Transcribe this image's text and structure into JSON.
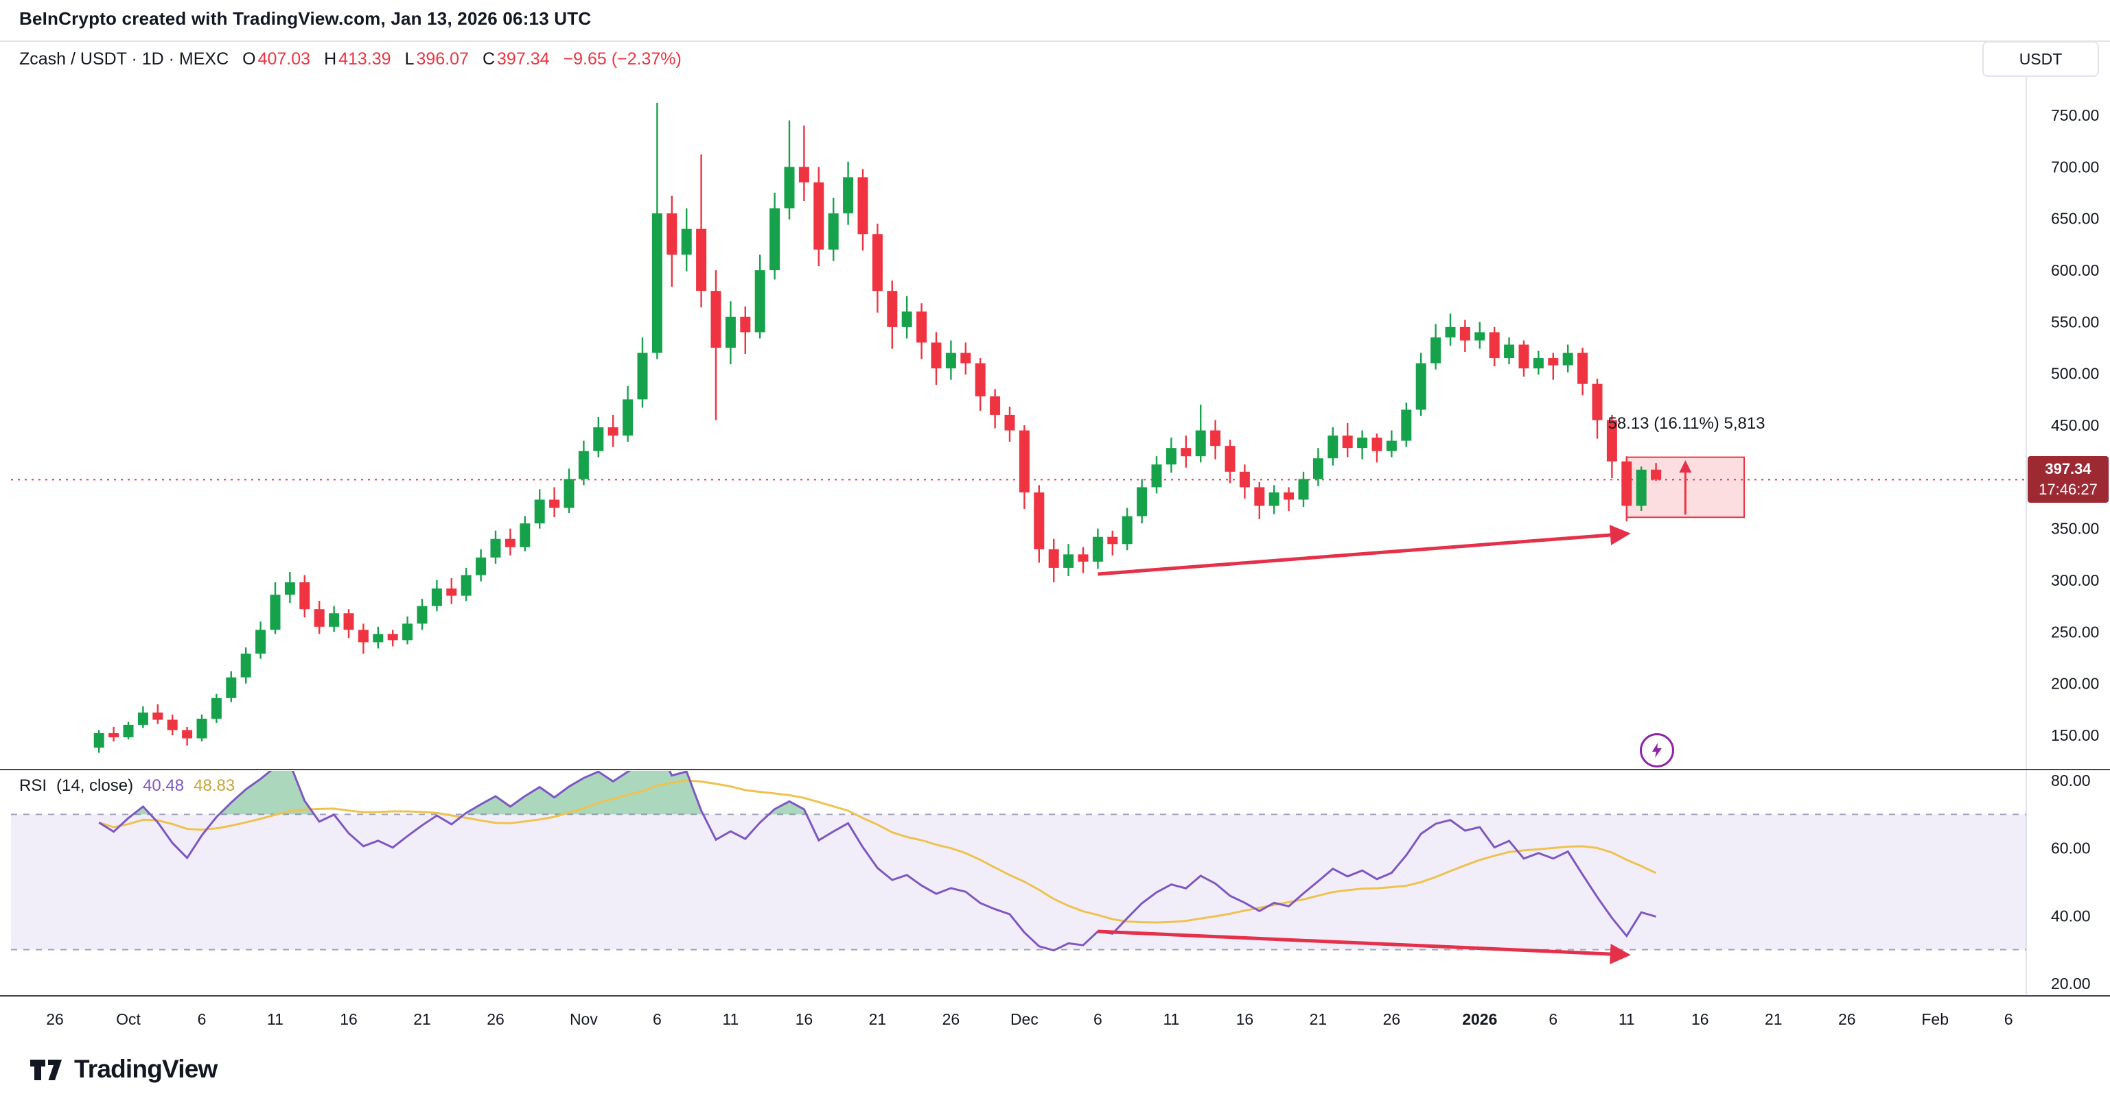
{
  "attribution": {
    "text": "BeInCrypto created with TradingView.com, Jan 13, 2026 06:13 UTC"
  },
  "header": {
    "symbol_title": "Zcash / USDT · 1D · MEXC",
    "ohlc": {
      "o_label": "O",
      "o_value": "407.03",
      "h_label": "H",
      "h_value": "413.39",
      "l_label": "L",
      "l_value": "396.07",
      "c_label": "C",
      "c_value": "397.34",
      "change": "−9.65 (−2.37%)"
    }
  },
  "price_axis": {
    "currency_label": "USDT",
    "ticks": [
      {
        "label": "750.00",
        "value": 750
      },
      {
        "label": "700.00",
        "value": 700
      },
      {
        "label": "650.00",
        "value": 650
      },
      {
        "label": "600.00",
        "value": 600
      },
      {
        "label": "550.00",
        "value": 550
      },
      {
        "label": "500.00",
        "value": 500
      },
      {
        "label": "450.00",
        "value": 450
      },
      {
        "label": "350.00",
        "value": 350
      },
      {
        "label": "300.00",
        "value": 300
      },
      {
        "label": "250.00",
        "value": 250
      },
      {
        "label": "200.00",
        "value": 200
      },
      {
        "label": "150.00",
        "value": 150
      }
    ],
    "last_price_badge": {
      "price": "397.34",
      "countdown": "17:46:27"
    }
  },
  "rsi_axis": {
    "ticks": [
      {
        "label": "80.00",
        "value": 80
      },
      {
        "label": "60.00",
        "value": 60
      },
      {
        "label": "40.00",
        "value": 40
      },
      {
        "label": "20.00",
        "value": 20
      }
    ]
  },
  "time_axis": {
    "ticks": [
      {
        "label": "26",
        "t": "2025-09-26",
        "bold": false
      },
      {
        "label": "Oct",
        "t": "2025-10-01",
        "bold": false
      },
      {
        "label": "6",
        "t": "2025-10-06",
        "bold": false
      },
      {
        "label": "11",
        "t": "2025-10-11",
        "bold": false
      },
      {
        "label": "16",
        "t": "2025-10-16",
        "bold": false
      },
      {
        "label": "21",
        "t": "2025-10-21",
        "bold": false
      },
      {
        "label": "26",
        "t": "2025-10-26",
        "bold": false
      },
      {
        "label": "Nov",
        "t": "2025-11-01",
        "bold": false
      },
      {
        "label": "6",
        "t": "2025-11-06",
        "bold": false
      },
      {
        "label": "11",
        "t": "2025-11-11",
        "bold": false
      },
      {
        "label": "16",
        "t": "2025-11-16",
        "bold": false
      },
      {
        "label": "21",
        "t": "2025-11-21",
        "bold": false
      },
      {
        "label": "26",
        "t": "2025-11-26",
        "bold": false
      },
      {
        "label": "Dec",
        "t": "2025-12-01",
        "bold": false
      },
      {
        "label": "6",
        "t": "2025-12-06",
        "bold": false
      },
      {
        "label": "11",
        "t": "2025-12-11",
        "bold": false
      },
      {
        "label": "16",
        "t": "2025-12-16",
        "bold": false
      },
      {
        "label": "21",
        "t": "2025-12-21",
        "bold": false
      },
      {
        "label": "26",
        "t": "2025-12-26",
        "bold": false
      },
      {
        "label": "2026",
        "t": "2026-01-01",
        "bold": true
      },
      {
        "label": "6",
        "t": "2026-01-06",
        "bold": false
      },
      {
        "label": "11",
        "t": "2026-01-11",
        "bold": false
      },
      {
        "label": "16",
        "t": "2026-01-16",
        "bold": false
      },
      {
        "label": "21",
        "t": "2026-01-21",
        "bold": false
      },
      {
        "label": "26",
        "t": "2026-01-26",
        "bold": false
      },
      {
        "label": "Feb",
        "t": "2026-02-01",
        "bold": false
      },
      {
        "label": "6",
        "t": "2026-02-06",
        "bold": false
      }
    ]
  },
  "rsi_legend": {
    "title": "RSI",
    "params": "(14, close)",
    "rsi_value": "40.48",
    "ma_value": "48.83"
  },
  "annotations": {
    "range_label": "58.13 (16.11%) 5,813",
    "range_box": {
      "t_start": "2026-01-11",
      "t_end": "2026-01-19",
      "price_top": 419.05,
      "price_bottom": 360.92
    },
    "price_trend_arrow": {
      "t_start": "2025-12-06",
      "price_start": 306,
      "t_end": "2026-01-11",
      "price_end": 345
    },
    "rsi_trend_arrow": {
      "t_start": "2025-12-06",
      "rsi_start": 35.4,
      "t_end": "2026-01-11",
      "rsi_end": 28.5
    }
  },
  "logo": {
    "text": "TradingView"
  },
  "colors": {
    "up_candle": "#15a24b",
    "down_candle": "#ef3341",
    "price_line": "#ef3341",
    "rsi_line": "#7e57c2",
    "rsi_ma_line": "#eec24e",
    "rsi_band_fill": "rgba(126,87,194,0.10)",
    "rsi_band_border": "#a3a3bd",
    "overbought_fill": "rgba(34,150,80,0.38)",
    "arrow": "#e5304a",
    "range_fill": "rgba(239,51,65,0.16)",
    "range_border": "#ef3341",
    "badge_bg": "#9d2933",
    "axis_text": "#131722",
    "frame_border": "#e0e3eb",
    "pane_separator": "#40434c",
    "lightning": "#8e24aa"
  },
  "chart_data": [
    {
      "type": "candlestick",
      "title": "Zcash / USDT · 1D · MEXC",
      "x_unit": "date",
      "ylim": [
        150,
        750
      ],
      "legend_position": "top-left",
      "grid": false,
      "last": {
        "o": 407.03,
        "h": 413.39,
        "l": 396.07,
        "c": 397.34,
        "change": -9.65,
        "change_pct": -2.37
      },
      "columns": [
        "time",
        "open",
        "high",
        "low",
        "close"
      ],
      "rows": [
        [
          "2025-09-29",
          138,
          155,
          133,
          152
        ],
        [
          "2025-09-30",
          152,
          158,
          144,
          148
        ],
        [
          "2025-10-01",
          148,
          163,
          146,
          160
        ],
        [
          "2025-10-02",
          160,
          178,
          157,
          172
        ],
        [
          "2025-10-03",
          172,
          180,
          161,
          165
        ],
        [
          "2025-10-04",
          165,
          170,
          150,
          155
        ],
        [
          "2025-10-05",
          155,
          158,
          140,
          147
        ],
        [
          "2025-10-06",
          147,
          170,
          144,
          166
        ],
        [
          "2025-10-07",
          166,
          190,
          162,
          186
        ],
        [
          "2025-10-08",
          186,
          212,
          182,
          206
        ],
        [
          "2025-10-09",
          206,
          235,
          200,
          229
        ],
        [
          "2025-10-10",
          229,
          260,
          224,
          252
        ],
        [
          "2025-10-11",
          252,
          298,
          248,
          286
        ],
        [
          "2025-10-12",
          286,
          308,
          278,
          298
        ],
        [
          "2025-10-13",
          298,
          305,
          264,
          272
        ],
        [
          "2025-10-14",
          272,
          280,
          248,
          255
        ],
        [
          "2025-10-15",
          255,
          275,
          250,
          268
        ],
        [
          "2025-10-16",
          268,
          272,
          244,
          252
        ],
        [
          "2025-10-17",
          252,
          258,
          229,
          240
        ],
        [
          "2025-10-18",
          240,
          255,
          234,
          248
        ],
        [
          "2025-10-19",
          248,
          252,
          236,
          242
        ],
        [
          "2025-10-20",
          242,
          265,
          238,
          258
        ],
        [
          "2025-10-21",
          258,
          282,
          252,
          275
        ],
        [
          "2025-10-22",
          275,
          300,
          270,
          292
        ],
        [
          "2025-10-23",
          292,
          302,
          277,
          285
        ],
        [
          "2025-10-24",
          285,
          312,
          280,
          305
        ],
        [
          "2025-10-25",
          305,
          330,
          299,
          322
        ],
        [
          "2025-10-26",
          322,
          348,
          316,
          340
        ],
        [
          "2025-10-27",
          340,
          350,
          324,
          332
        ],
        [
          "2025-10-28",
          332,
          362,
          328,
          355
        ],
        [
          "2025-10-29",
          355,
          388,
          350,
          378
        ],
        [
          "2025-10-30",
          378,
          390,
          361,
          370
        ],
        [
          "2025-10-31",
          370,
          408,
          365,
          398
        ],
        [
          "2025-11-01",
          398,
          435,
          392,
          425
        ],
        [
          "2025-11-02",
          425,
          458,
          419,
          448
        ],
        [
          "2025-11-03",
          448,
          460,
          429,
          440
        ],
        [
          "2025-11-04",
          440,
          488,
          434,
          475
        ],
        [
          "2025-11-05",
          475,
          535,
          467,
          520
        ],
        [
          "2025-11-06",
          520,
          762,
          514,
          655
        ],
        [
          "2025-11-07",
          655,
          672,
          584,
          615
        ],
        [
          "2025-11-08",
          615,
          660,
          599,
          640
        ],
        [
          "2025-11-09",
          640,
          712,
          564,
          580
        ],
        [
          "2025-11-10",
          580,
          600,
          455,
          525
        ],
        [
          "2025-11-11",
          525,
          570,
          509,
          555
        ],
        [
          "2025-11-12",
          555,
          565,
          519,
          540
        ],
        [
          "2025-11-13",
          540,
          615,
          534,
          600
        ],
        [
          "2025-11-14",
          600,
          675,
          591,
          660
        ],
        [
          "2025-11-15",
          660,
          745,
          649,
          700
        ],
        [
          "2025-11-16",
          700,
          740,
          667,
          685
        ],
        [
          "2025-11-17",
          685,
          700,
          604,
          620
        ],
        [
          "2025-11-18",
          620,
          670,
          609,
          655
        ],
        [
          "2025-11-19",
          655,
          705,
          644,
          690
        ],
        [
          "2025-11-20",
          690,
          698,
          619,
          635
        ],
        [
          "2025-11-21",
          635,
          645,
          559,
          580
        ],
        [
          "2025-11-22",
          580,
          590,
          524,
          545
        ],
        [
          "2025-11-23",
          545,
          575,
          534,
          560
        ],
        [
          "2025-11-24",
          560,
          568,
          514,
          530
        ],
        [
          "2025-11-25",
          530,
          540,
          489,
          505
        ],
        [
          "2025-11-26",
          505,
          532,
          494,
          520
        ],
        [
          "2025-11-27",
          520,
          530,
          499,
          510
        ],
        [
          "2025-11-28",
          510,
          515,
          464,
          478
        ],
        [
          "2025-11-29",
          478,
          485,
          447,
          460
        ],
        [
          "2025-11-30",
          460,
          468,
          434,
          445
        ],
        [
          "2025-12-01",
          445,
          450,
          369,
          385
        ],
        [
          "2025-12-02",
          385,
          392,
          317,
          330
        ],
        [
          "2025-12-03",
          330,
          340,
          298,
          312
        ],
        [
          "2025-12-04",
          312,
          335,
          304,
          325
        ],
        [
          "2025-12-05",
          325,
          332,
          307,
          318
        ],
        [
          "2025-12-06",
          318,
          350,
          311,
          342
        ],
        [
          "2025-12-07",
          342,
          348,
          324,
          335
        ],
        [
          "2025-12-08",
          335,
          370,
          329,
          362
        ],
        [
          "2025-12-09",
          362,
          398,
          355,
          390
        ],
        [
          "2025-12-10",
          390,
          420,
          384,
          412
        ],
        [
          "2025-12-11",
          412,
          438,
          404,
          428
        ],
        [
          "2025-12-12",
          428,
          440,
          409,
          420
        ],
        [
          "2025-12-13",
          420,
          470,
          414,
          445
        ],
        [
          "2025-12-14",
          445,
          455,
          417,
          430
        ],
        [
          "2025-12-15",
          430,
          436,
          394,
          405
        ],
        [
          "2025-12-16",
          405,
          412,
          379,
          390
        ],
        [
          "2025-12-17",
          390,
          395,
          359,
          372
        ],
        [
          "2025-12-18",
          372,
          392,
          364,
          385
        ],
        [
          "2025-12-19",
          385,
          390,
          367,
          378
        ],
        [
          "2025-12-20",
          378,
          405,
          371,
          398
        ],
        [
          "2025-12-21",
          398,
          428,
          391,
          418
        ],
        [
          "2025-12-22",
          418,
          448,
          411,
          440
        ],
        [
          "2025-12-23",
          440,
          452,
          419,
          428
        ],
        [
          "2025-12-24",
          428,
          445,
          417,
          438
        ],
        [
          "2025-12-25",
          438,
          442,
          414,
          425
        ],
        [
          "2025-12-26",
          425,
          445,
          419,
          435
        ],
        [
          "2025-12-27",
          435,
          472,
          429,
          465
        ],
        [
          "2025-12-28",
          465,
          520,
          459,
          510
        ],
        [
          "2025-12-29",
          510,
          548,
          504,
          535
        ],
        [
          "2025-12-30",
          535,
          558,
          527,
          545
        ],
        [
          "2025-12-31",
          545,
          552,
          521,
          532
        ],
        [
          "2026-01-01",
          532,
          550,
          524,
          540
        ],
        [
          "2026-01-02",
          540,
          545,
          507,
          515
        ],
        [
          "2026-01-03",
          515,
          535,
          509,
          528
        ],
        [
          "2026-01-04",
          528,
          532,
          497,
          505
        ],
        [
          "2026-01-05",
          505,
          522,
          499,
          515
        ],
        [
          "2026-01-06",
          515,
          520,
          494,
          508
        ],
        [
          "2026-01-07",
          508,
          528,
          501,
          520
        ],
        [
          "2026-01-08",
          520,
          525,
          479,
          490
        ],
        [
          "2026-01-09",
          490,
          495,
          437,
          455
        ],
        [
          "2026-01-10",
          455,
          460,
          399,
          415
        ],
        [
          "2026-01-11",
          415,
          420,
          357,
          372
        ],
        [
          "2026-01-12",
          372,
          410,
          367,
          407
        ],
        [
          "2026-01-13",
          407.03,
          413.39,
          396.07,
          397.34
        ]
      ]
    },
    {
      "type": "line",
      "title": "RSI (14, close)",
      "ylim": [
        20,
        80
      ],
      "bands": {
        "upper": 70,
        "lower": 30
      },
      "series": [
        {
          "name": "RSI",
          "period": 14,
          "source": "close",
          "last_value": 40.48
        },
        {
          "name": "RSI-based MA",
          "period": 14,
          "source": "RSI",
          "last_value": 48.83
        }
      ]
    }
  ]
}
